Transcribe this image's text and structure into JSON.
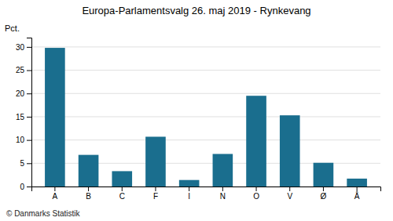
{
  "chart_data": {
    "type": "bar",
    "title": "Europa-Parlamentsvalg 26. maj 2019 - Rynkevang",
    "categories": [
      "A",
      "B",
      "C",
      "F",
      "I",
      "N",
      "O",
      "V",
      "Ø",
      "Å"
    ],
    "values": [
      29.8,
      6.8,
      3.3,
      10.7,
      1.4,
      7.0,
      19.5,
      15.3,
      5.1,
      1.7
    ],
    "color": "#1a6e8e",
    "ylabel": "Pct.",
    "ylim": [
      0,
      32
    ],
    "yticks": [
      0,
      5,
      10,
      15,
      20,
      25,
      30
    ],
    "grid": true,
    "annotations": [
      "© Danmarks Statistik"
    ]
  }
}
